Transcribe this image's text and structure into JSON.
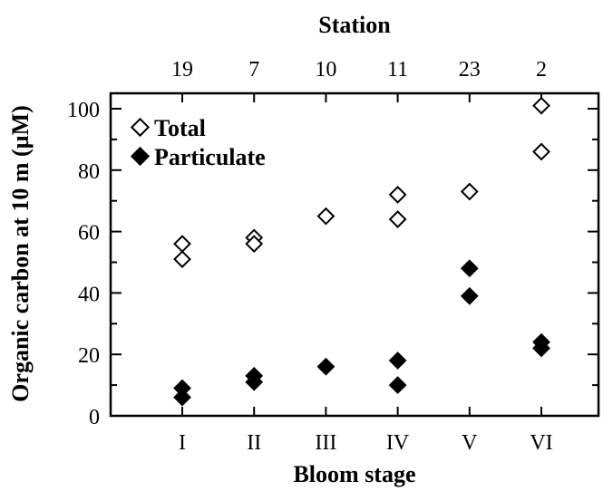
{
  "chart_data": {
    "type": "scatter",
    "title": "",
    "xlabel": "Bloom stage",
    "ylabel": "Organic carbon at 10 m (µM)",
    "top_axis_label": "Station",
    "categories": [
      "I",
      "II",
      "III",
      "IV",
      "V",
      "VI"
    ],
    "stations": [
      "19",
      "7",
      "10",
      "11",
      "23",
      "2"
    ],
    "ylim": [
      0,
      100
    ],
    "yticks": [
      0,
      20,
      40,
      60,
      80,
      100
    ],
    "grid": false,
    "legend_position": "top-left",
    "series": [
      {
        "name": "Total",
        "marker": "open-diamond",
        "points": [
          {
            "x": "I",
            "y": 56
          },
          {
            "x": "I",
            "y": 51
          },
          {
            "x": "II",
            "y": 58
          },
          {
            "x": "II",
            "y": 56
          },
          {
            "x": "III",
            "y": 65
          },
          {
            "x": "IV",
            "y": 72
          },
          {
            "x": "IV",
            "y": 64
          },
          {
            "x": "V",
            "y": 73
          },
          {
            "x": "VI",
            "y": 101
          },
          {
            "x": "VI",
            "y": 86
          }
        ]
      },
      {
        "name": "Particulate",
        "marker": "filled-diamond",
        "points": [
          {
            "x": "I",
            "y": 9
          },
          {
            "x": "I",
            "y": 6
          },
          {
            "x": "II",
            "y": 13
          },
          {
            "x": "II",
            "y": 11
          },
          {
            "x": "III",
            "y": 16
          },
          {
            "x": "IV",
            "y": 18
          },
          {
            "x": "IV",
            "y": 10
          },
          {
            "x": "V",
            "y": 48
          },
          {
            "x": "V",
            "y": 39
          },
          {
            "x": "VI",
            "y": 24
          },
          {
            "x": "VI",
            "y": 22
          }
        ]
      }
    ]
  }
}
